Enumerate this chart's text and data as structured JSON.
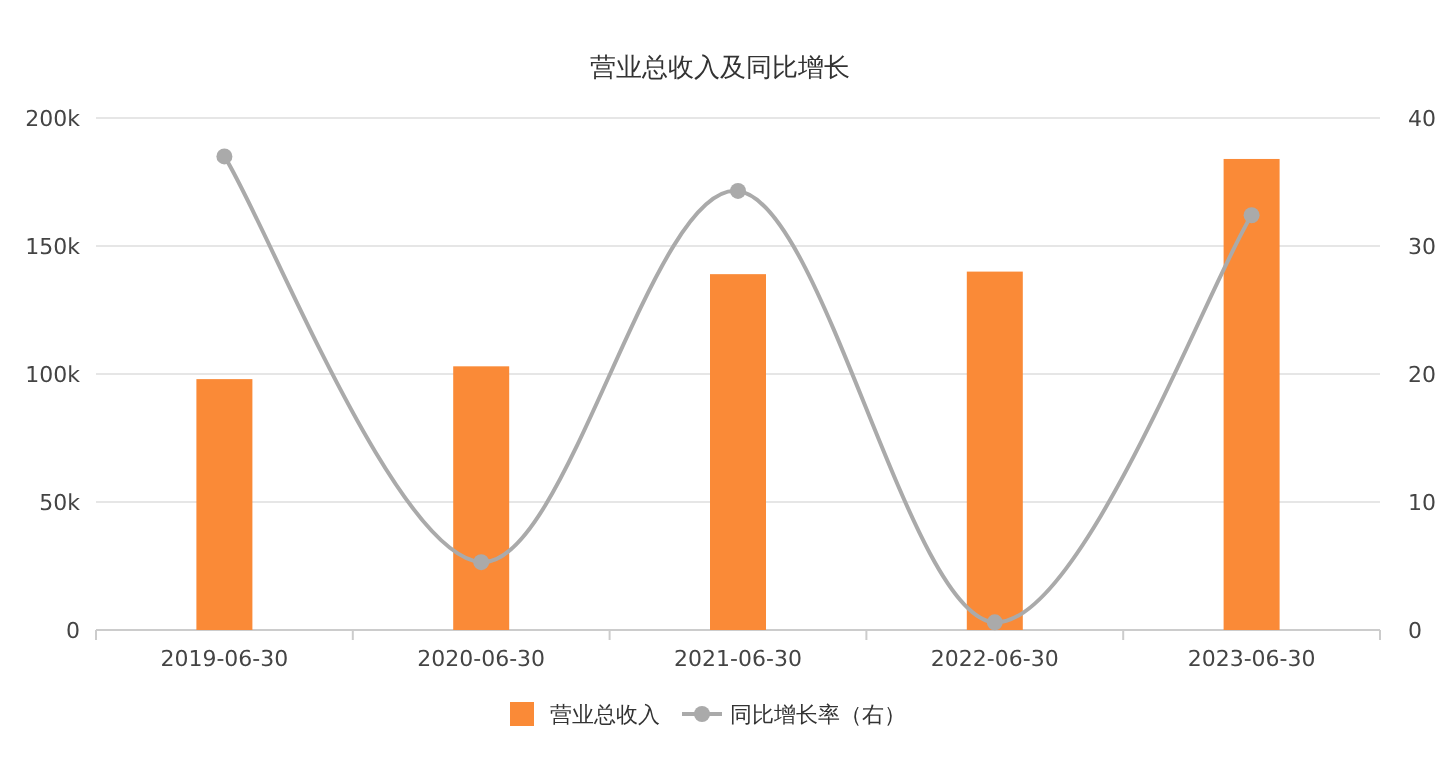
{
  "chart_data": {
    "type": "bar",
    "title": "营业总收入及同比增长",
    "categories": [
      "2019-06-30",
      "2020-06-30",
      "2021-06-30",
      "2022-06-30",
      "2023-06-30"
    ],
    "series": [
      {
        "name": "营业总收入",
        "color": "#fa8a37",
        "values": [
          98000,
          103000,
          139000,
          140000,
          184000
        ]
      },
      {
        "name": "同比增长率（右）",
        "type": "line",
        "axis": "y2",
        "color": "#aaaaaa",
        "values": [
          37.0,
          5.3,
          34.3,
          0.6,
          32.4
        ]
      }
    ],
    "ylim": [
      0,
      200000
    ],
    "yticks": [
      0,
      {
        "value": 50000,
        "label": "50k"
      },
      {
        "value": 100000,
        "label": "100k"
      },
      {
        "value": 150000,
        "label": "150k"
      },
      {
        "value": 200000,
        "label": "200k"
      }
    ],
    "y2lim": [
      0,
      40
    ],
    "y2ticks": [
      0,
      10,
      20,
      30,
      40
    ],
    "grid": "y",
    "legend": "bottom",
    "marker": "circle"
  }
}
